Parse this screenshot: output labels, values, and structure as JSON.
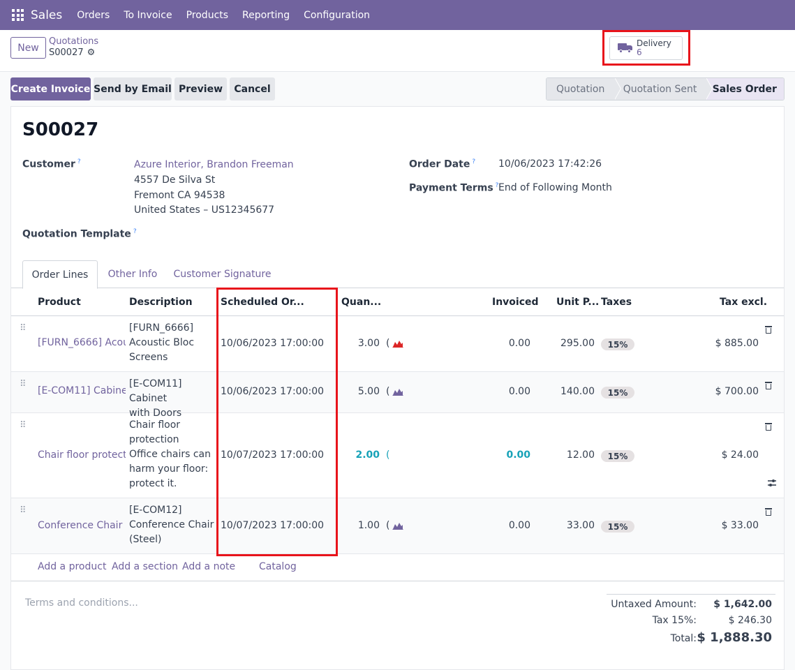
{
  "app": {
    "name": "Sales",
    "menu": [
      "Orders",
      "To Invoice",
      "Products",
      "Reporting",
      "Configuration"
    ]
  },
  "control_panel": {
    "new_label": "New",
    "breadcrumb_parent": "Quotations",
    "breadcrumb_current": "S00027",
    "delivery": {
      "label": "Delivery",
      "count": "6"
    }
  },
  "actions": {
    "create_invoice": "Create Invoice",
    "send_by_email": "Send by Email",
    "preview": "Preview",
    "cancel": "Cancel"
  },
  "status": {
    "stages": [
      "Quotation",
      "Quotation Sent",
      "Sales Order"
    ],
    "current": "Sales Order"
  },
  "order": {
    "name": "S00027",
    "customer_label": "Customer",
    "customer_name": "Azure Interior, Brandon Freeman",
    "address_line1": "4557 De Silva St",
    "address_line2": "Fremont CA 94538",
    "address_line3": "United States – US12345677",
    "template_label": "Quotation Template",
    "order_date_label": "Order Date",
    "order_date": "10/06/2023 17:42:26",
    "payment_terms_label": "Payment Terms",
    "payment_terms": "End of Following Month",
    "help_mark": "?"
  },
  "tabs": [
    "Order Lines",
    "Other Info",
    "Customer Signature"
  ],
  "columns": {
    "product": "Product",
    "description": "Description",
    "scheduled": "Scheduled Or...",
    "quantity": "Quan...",
    "invoiced": "Invoiced",
    "unit_price": "Unit P...",
    "taxes": "Taxes",
    "tax_excl": "Tax excl."
  },
  "lines": [
    {
      "product": "[FURN_6666] Acoustic Bloc Screens",
      "description": "[FURN_6666]\nAcoustic Bloc\nScreens",
      "scheduled": "10/06/2023 17:00:00",
      "quantity": "3.00",
      "invoiced": "0.00",
      "unit_price": "295.00",
      "tax": "15%",
      "subtotal": "$ 885.00",
      "forecast_color": "#dc2626"
    },
    {
      "product": "[E-COM11] Cabinet with Doors",
      "description": "[E-COM11] Cabinet\nwith Doors",
      "scheduled": "10/06/2023 17:00:00",
      "quantity": "5.00",
      "invoiced": "0.00",
      "unit_price": "140.00",
      "tax": "15%",
      "subtotal": "$ 700.00",
      "forecast_color": "#71639e"
    },
    {
      "product": "Chair floor protection",
      "description": "Chair floor\nprotection\nOffice chairs can\nharm your floor:\nprotect it.",
      "scheduled": "10/07/2023 17:00:00",
      "quantity": "2.00",
      "invoiced": "0.00",
      "unit_price": "12.00",
      "tax": "15%",
      "subtotal": "$ 24.00",
      "forecast_color": ""
    },
    {
      "product": "Conference Chair",
      "description": "[E-COM12]\nConference Chair\n(Steel)",
      "scheduled": "10/07/2023 17:00:00",
      "quantity": "1.00",
      "invoiced": "0.00",
      "unit_price": "33.00",
      "tax": "15%",
      "subtotal": "$ 33.00",
      "forecast_color": "#71639e"
    }
  ],
  "add_links": {
    "product": "Add a product",
    "section": "Add a section",
    "note": "Add a note",
    "catalog": "Catalog"
  },
  "terms_placeholder": "Terms and conditions...",
  "totals": {
    "untaxed_label": "Untaxed Amount:",
    "untaxed": "$ 1,642.00",
    "tax_label": "Tax 15%:",
    "tax": "$ 246.30",
    "total_label": "Total:",
    "total": "$ 1,888.30"
  },
  "colors": {
    "brand": "#71639e",
    "highlight": "#e8141b"
  }
}
